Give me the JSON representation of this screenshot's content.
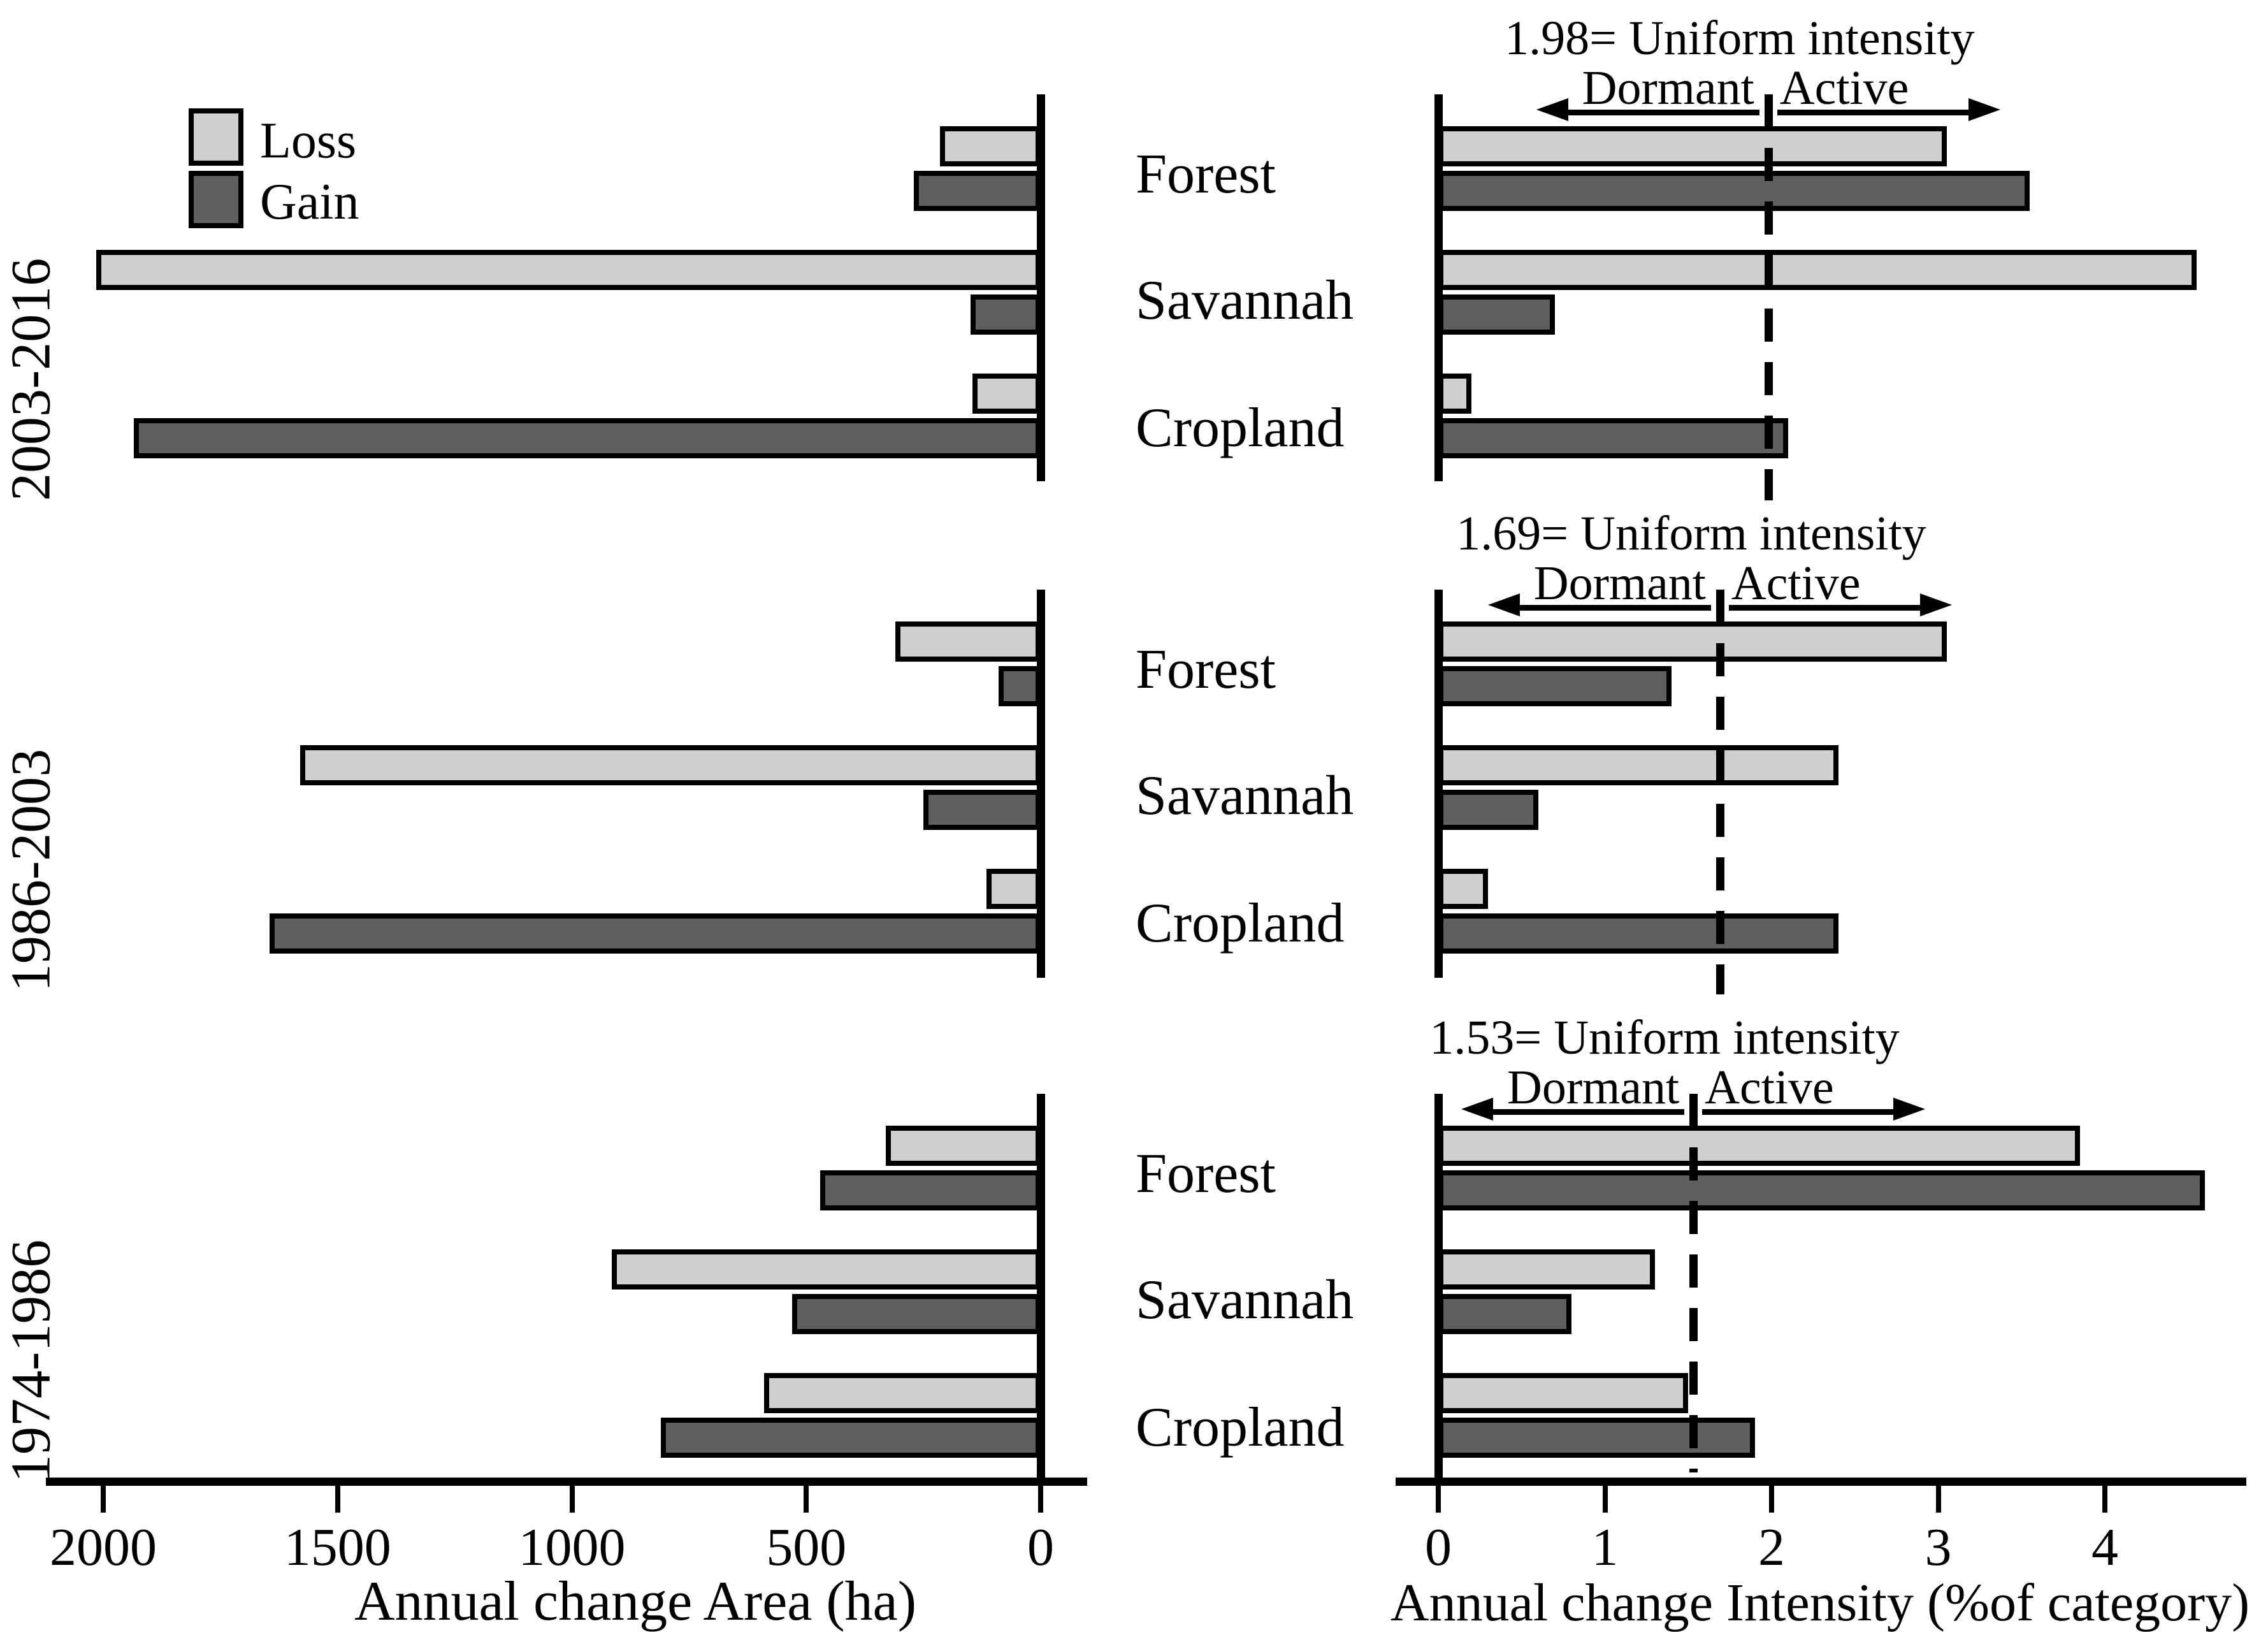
{
  "colors": {
    "loss_fill": "#cfcfcf",
    "gain_fill": "#5f5f5f",
    "bar_border": "#000000",
    "background": "#ffffff",
    "line_color": "#000000"
  },
  "legend": {
    "items": [
      {
        "label": "Loss",
        "color_key": "loss_fill"
      },
      {
        "label": "Gain",
        "color_key": "gain_fill"
      }
    ]
  },
  "row_labels": [
    "2003-2016",
    "1986-2003",
    "1974-1986"
  ],
  "category_labels": [
    "Forest",
    "Savannah",
    "Cropland"
  ],
  "chart_data": [
    {
      "type": "bar",
      "orientation": "horizontal",
      "panel": "left",
      "title": "",
      "xlabel": "Annual change Area (ha)",
      "ylabel": "",
      "x_ticks": [
        "2000",
        "1500",
        "1000",
        "500",
        "0"
      ],
      "x_tick_values": [
        2000,
        1500,
        1000,
        500,
        0
      ],
      "x_max": 2000,
      "x_reversed": true,
      "grid": false,
      "legend_position": "top-left of first panel",
      "rows": [
        {
          "period": "2003-2016",
          "categories": [
            "Forest",
            "Savannah",
            "Cropland"
          ],
          "series": [
            {
              "name": "Loss",
              "values": [
                215,
                2015,
                145
              ]
            },
            {
              "name": "Gain",
              "values": [
                270,
                150,
                1935
              ]
            }
          ]
        },
        {
          "period": "1986-2003",
          "categories": [
            "Forest",
            "Savannah",
            "Cropland"
          ],
          "series": [
            {
              "name": "Loss",
              "values": [
                310,
                1580,
                115
              ]
            },
            {
              "name": "Gain",
              "values": [
                90,
                250,
                1645
              ]
            }
          ]
        },
        {
          "period": "1974-1986",
          "categories": [
            "Forest",
            "Savannah",
            "Cropland"
          ],
          "series": [
            {
              "name": "Loss",
              "values": [
                330,
                915,
                590
              ]
            },
            {
              "name": "Gain",
              "values": [
                470,
                530,
                810
              ]
            }
          ]
        }
      ]
    },
    {
      "type": "bar",
      "orientation": "horizontal",
      "panel": "right",
      "title": "",
      "xlabel": "Annual change Intensity (%of category)",
      "ylabel": "",
      "x_ticks": [
        "0",
        "1",
        "2",
        "3",
        "4"
      ],
      "x_tick_values": [
        0,
        1,
        2,
        3,
        4
      ],
      "x_max": 4.85,
      "x_reversed": false,
      "grid": false,
      "rows": [
        {
          "period": "2003-2016",
          "categories": [
            "Forest",
            "Savannah",
            "Cropland"
          ],
          "uniform_intensity": 1.98,
          "uniform_text": "1.98= Uniform intensity",
          "dormant_label": "Dormant",
          "active_label": "Active",
          "series": [
            {
              "name": "Loss",
              "values": [
                3.05,
                4.55,
                0.2
              ]
            },
            {
              "name": "Gain",
              "values": [
                3.55,
                0.7,
                2.1
              ]
            }
          ]
        },
        {
          "period": "1986-2003",
          "categories": [
            "Forest",
            "Savannah",
            "Cropland"
          ],
          "uniform_intensity": 1.69,
          "uniform_text": "1.69= Uniform intensity",
          "dormant_label": "Dormant",
          "active_label": "Active",
          "series": [
            {
              "name": "Loss",
              "values": [
                3.05,
                2.4,
                0.3
              ]
            },
            {
              "name": "Gain",
              "values": [
                1.4,
                0.6,
                2.4
              ]
            }
          ]
        },
        {
          "period": "1974-1986",
          "categories": [
            "Forest",
            "Savannah",
            "Cropland"
          ],
          "uniform_intensity": 1.53,
          "uniform_text": "1.53= Uniform intensity",
          "dormant_label": "Dormant",
          "active_label": "Active",
          "series": [
            {
              "name": "Loss",
              "values": [
                3.85,
                1.3,
                1.5
              ]
            },
            {
              "name": "Gain",
              "values": [
                4.6,
                0.8,
                1.9
              ]
            }
          ]
        }
      ]
    }
  ]
}
